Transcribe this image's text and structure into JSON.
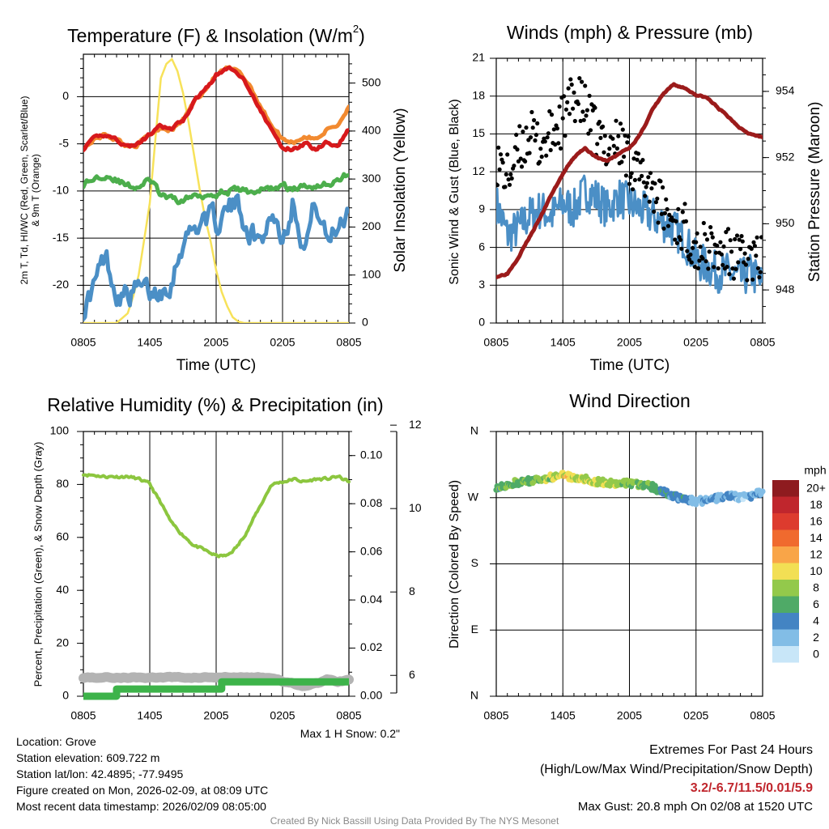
{
  "chart_data": [
    {
      "type": "line",
      "title": "Temperature (F) & Insolation (W/m",
      "title_superscript": "2",
      "title_suffix": ")",
      "xlabel": "Time (UTC)",
      "ylabel_lines": [
        "2m T, Td, HI/WC (Red, Green, Scarlet/Blue)",
        "& 9m T (Orange)"
      ],
      "y2label": "Solar Insolation (Yellow)",
      "x_ticks": [
        "0805",
        "1405",
        "2005",
        "0205",
        "0805"
      ],
      "ylim": [
        -24,
        4.5
      ],
      "y_ticks": [
        0,
        -5,
        -10,
        -15,
        -20
      ],
      "y2lim": [
        0,
        560
      ],
      "y2_ticks": [
        0,
        100,
        200,
        300,
        400,
        500
      ],
      "series": [
        {
          "name": "2m T",
          "color": "#d7191c",
          "axis": "left",
          "x": [
            0,
            1,
            2,
            3,
            4,
            5,
            6,
            7,
            8,
            9,
            10,
            11,
            12,
            13,
            14,
            15,
            16,
            17,
            18,
            19,
            20,
            21,
            22,
            23,
            24
          ],
          "y": [
            -5.5,
            -4.5,
            -4.0,
            -4.5,
            -5.3,
            -5.0,
            -4.0,
            -3.2,
            -3.5,
            -2.5,
            -0.5,
            0.8,
            2.3,
            3.0,
            2.5,
            1.0,
            -1.5,
            -3.5,
            -5.5,
            -5.5,
            -5.0,
            -5.5,
            -4.8,
            -5.0,
            -3.5
          ]
        },
        {
          "name": "9m T",
          "color": "#f28a30",
          "axis": "left",
          "x": [
            0,
            1,
            2,
            3,
            4,
            5,
            6,
            7,
            8,
            9,
            10,
            11,
            12,
            13,
            14,
            15,
            16,
            17,
            18,
            19,
            20,
            21,
            22,
            23,
            24
          ],
          "y": [
            -5.5,
            -4.5,
            -4.0,
            -4.5,
            -5.3,
            -5.0,
            -4.0,
            -3.2,
            -3.5,
            -2.5,
            -0.5,
            0.8,
            2.3,
            3.0,
            2.6,
            1.3,
            -1.0,
            -3.0,
            -4.5,
            -4.8,
            -4.2,
            -4.5,
            -3.5,
            -3.0,
            -1.0
          ]
        },
        {
          "name": "Td",
          "color": "#4cae4c",
          "axis": "left",
          "x": [
            0,
            1,
            2,
            3,
            4,
            5,
            6,
            7,
            8,
            9,
            10,
            11,
            12,
            13,
            14,
            15,
            16,
            17,
            18,
            19,
            20,
            21,
            22,
            23,
            24
          ],
          "y": [
            -9.3,
            -8.7,
            -8.1,
            -8.8,
            -9.5,
            -9.5,
            -8.8,
            -10.5,
            -11,
            -11,
            -10.5,
            -10.3,
            -10.2,
            -10.0,
            -9.9,
            -10.1,
            -9.9,
            -9.7,
            -9.5,
            -9.8,
            -9.5,
            -9.3,
            -9.2,
            -9.0,
            -8.0
          ]
        },
        {
          "name": "HI/WC",
          "color": "#4b8fc6",
          "axis": "left",
          "x": [
            0,
            1,
            2,
            3,
            4,
            5,
            6,
            7,
            8,
            9,
            10,
            11,
            12,
            13,
            14,
            15,
            16,
            17,
            18,
            19,
            20,
            21,
            22,
            23,
            24
          ],
          "y": [
            -22.5,
            -20,
            -17,
            -20.5,
            -21,
            -20.5,
            -21,
            -20.5,
            -19,
            -15,
            -14,
            -12.5,
            -13.5,
            -12,
            -11.5,
            -14,
            -15.5,
            -12,
            -15,
            -10.5,
            -16,
            -11,
            -15.5,
            -13.5,
            -11.5
          ]
        },
        {
          "name": "Solar Insolation",
          "color": "#f7e25a",
          "axis": "right",
          "x": [
            0,
            3,
            4,
            4.5,
            5,
            5.5,
            6,
            6.5,
            7,
            7.5,
            8,
            8.5,
            9,
            9.5,
            10,
            10.5,
            11,
            11.5,
            12,
            12.5,
            13,
            13.5,
            14,
            14.5,
            15,
            24
          ],
          "y": [
            0,
            0,
            20,
            55,
            100,
            175,
            250,
            380,
            510,
            540,
            550,
            525,
            480,
            420,
            350,
            280,
            220,
            170,
            110,
            65,
            35,
            12,
            3,
            0,
            0,
            0
          ]
        }
      ]
    },
    {
      "type": "scatter",
      "title": "Winds (mph) & Pressure (mb)",
      "xlabel": "Time (UTC)",
      "ylabel": "Sonic Wind & Gust (Blue, Black)",
      "y2label": "Station Pressure (Maroon)",
      "x_ticks": [
        "0805",
        "1405",
        "2005",
        "0205",
        "0805"
      ],
      "ylim": [
        0,
        21
      ],
      "y_ticks": [
        0,
        3,
        6,
        9,
        12,
        15,
        18,
        21
      ],
      "y2lim": [
        947,
        955
      ],
      "y2_ticks": [
        948,
        950,
        952,
        954
      ],
      "series": [
        {
          "name": "Sonic Wind",
          "color": "#4b8fc6",
          "axis": "left",
          "x": [
            0,
            1,
            2,
            3,
            4,
            5,
            6,
            7,
            8,
            9,
            10,
            11,
            12,
            13,
            14,
            15,
            16,
            17,
            18,
            19,
            20,
            21,
            22,
            23,
            24
          ],
          "y": [
            9.5,
            7,
            7.5,
            8.5,
            9,
            8.5,
            9.5,
            9,
            10.5,
            10,
            9,
            10,
            9.5,
            9,
            8.5,
            8,
            7.5,
            6.5,
            5,
            4.5,
            4,
            4,
            3.5,
            4,
            3
          ]
        },
        {
          "name": "Gust",
          "color": "#000000",
          "axis": "left",
          "x": [
            0,
            1,
            2,
            3,
            4,
            5,
            6,
            7,
            8,
            9,
            10,
            11,
            12,
            13,
            14,
            15,
            16,
            17,
            18,
            19,
            20,
            21,
            22,
            23,
            24
          ],
          "y": [
            13,
            11.5,
            13.5,
            15,
            14,
            15,
            16,
            18,
            17,
            15,
            14,
            14.5,
            13,
            11.5,
            11,
            9,
            8,
            7.5,
            6,
            6,
            5.5,
            5.5,
            5,
            5,
            5
          ]
        },
        {
          "name": "Station Pressure",
          "color": "#9b1b1b",
          "axis": "right",
          "x": [
            0,
            1,
            2,
            3,
            4,
            5,
            6,
            7,
            8,
            9,
            10,
            11,
            12,
            13,
            14,
            15,
            16,
            17,
            18,
            19,
            20,
            21,
            22,
            23,
            24
          ],
          "y": [
            948.4,
            948.5,
            949,
            949.6,
            950.2,
            950.9,
            951.5,
            952.0,
            952.3,
            952.0,
            951.9,
            952.1,
            952.3,
            952.7,
            953.4,
            953.9,
            954.2,
            954.1,
            953.9,
            953.8,
            953.5,
            953.2,
            952.9,
            952.7,
            952.6
          ]
        }
      ]
    },
    {
      "type": "line",
      "title": "Relative Humidity (%) & Precipitation (in)",
      "ylabel": "Percent, Precipitation (Green), & Snow Depth (Gray)",
      "x_ticks": [
        "0805",
        "1405",
        "2005",
        "0205",
        "0805"
      ],
      "ylim": [
        0,
        100
      ],
      "y_ticks": [
        0,
        20,
        40,
        60,
        80,
        100
      ],
      "y2lim": [
        0,
        0.11
      ],
      "y2_ticks": [
        "0.00",
        "0.02",
        "0.04",
        "0.06",
        "0.08",
        "0.10"
      ],
      "y3lim": [
        5.5,
        12.1
      ],
      "y3_ticks": [
        6,
        8,
        10,
        12
      ],
      "series": [
        {
          "name": "Relative Humidity",
          "color": "#8cc63f",
          "axis": "left",
          "x": [
            0,
            1,
            2,
            3,
            4,
            5,
            6,
            7,
            8,
            9,
            10,
            11,
            12,
            13,
            14,
            15,
            16,
            17,
            18,
            19,
            20,
            21,
            22,
            23,
            24
          ],
          "y": [
            84,
            83.5,
            83,
            83,
            83,
            82,
            80,
            73,
            65,
            61,
            57,
            55,
            53,
            53,
            57,
            64,
            72,
            80,
            81,
            82,
            81,
            82,
            82,
            83,
            81
          ]
        },
        {
          "name": "Precipitation",
          "color": "#3db34a",
          "axis": "right",
          "x": [
            0,
            3,
            3,
            12.5,
            12.5,
            24
          ],
          "y": [
            0,
            0,
            0.003,
            0.003,
            0.006,
            0.006
          ]
        },
        {
          "name": "Snow Depth",
          "color": "#b3b3b3",
          "axis": "y3",
          "x": [
            0,
            17,
            18,
            19,
            20,
            21,
            22,
            23,
            24
          ],
          "y": [
            5.95,
            5.95,
            5.85,
            5.8,
            5.75,
            5.8,
            5.9,
            5.85,
            5.9
          ]
        }
      ]
    },
    {
      "type": "scatter",
      "title": "Wind Direction",
      "ylabel": "Direction (Colored By Speed)",
      "x_ticks": [
        "0805",
        "1405",
        "2005",
        "0205",
        "0805"
      ],
      "y_ticks": [
        "N",
        "E",
        "S",
        "W",
        "N"
      ],
      "ylim": [
        0,
        360
      ],
      "series": [
        {
          "name": "Wind Direction",
          "color": "speed-colored",
          "x": [
            0,
            1,
            2,
            3,
            4,
            5,
            6,
            7,
            8,
            9,
            10,
            11,
            12,
            13,
            14,
            15,
            16,
            17,
            18,
            19,
            20,
            21,
            22,
            23,
            24
          ],
          "y": [
            285,
            288,
            291,
            293,
            295,
            298,
            300,
            297,
            296,
            292,
            290,
            290,
            289,
            288,
            285,
            278,
            272,
            268,
            265,
            266,
            270,
            273,
            270,
            273,
            278
          ],
          "speed": [
            6,
            7,
            7,
            7,
            8,
            8,
            10,
            10,
            9,
            8,
            9,
            8,
            8,
            7,
            6,
            5,
            4,
            4,
            3,
            3,
            3,
            3,
            2,
            3,
            2
          ]
        }
      ],
      "colorbar": {
        "label": "mph",
        "levels": [
          "20+",
          "18",
          "16",
          "14",
          "12",
          "10",
          "8",
          "6",
          "4",
          "2",
          "0"
        ],
        "colors": [
          "#8e1b1f",
          "#c0262d",
          "#dd3b2e",
          "#f06a2e",
          "#f9a548",
          "#f2df54",
          "#93c94b",
          "#4faa67",
          "#4384c3",
          "#82bde6",
          "#c8e6f8"
        ]
      }
    }
  ],
  "info": {
    "location": "Location: Grove",
    "elevation": "Station elevation: 609.722 m",
    "latlon": "Station lat/lon: 42.4895; -77.9495",
    "created": "Figure created on Mon, 2026-02-09, at 08:09 UTC",
    "recent": "Most recent data timestamp: 2026/02/09 08:05:00"
  },
  "snow_note": "Max 1 H Snow: 0.2\"",
  "extremes": {
    "title": "Extremes For Past 24 Hours",
    "legend": "(High/Low/Max Wind/Precipitation/Snow Depth)",
    "values": "3.2/-6.7/11.5/0.01/5.9",
    "gust": "Max Gust: 20.8 mph On 02/08 at 1520 UTC"
  },
  "credit": "Created By Nick Bassill Using Data Provided By The NYS Mesonet"
}
